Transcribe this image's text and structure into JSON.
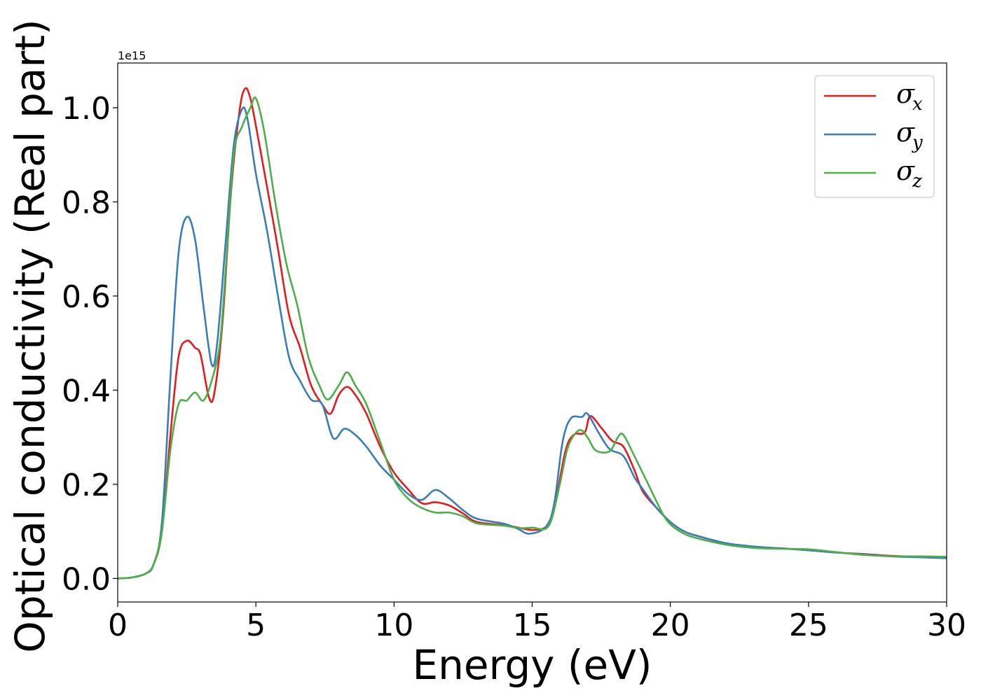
{
  "chart_data": {
    "type": "line",
    "xlabel": "Energy (eV)",
    "ylabel": "Optical conductivity (Real part)",
    "y_offset_text": "1e15",
    "xlim": [
      0,
      30
    ],
    "ylim": [
      -0.05,
      1.095
    ],
    "xticks": [
      0,
      5,
      10,
      15,
      20,
      25,
      30
    ],
    "xtick_labels": [
      "0",
      "5",
      "10",
      "15",
      "20",
      "25",
      "30"
    ],
    "yticks": [
      0.0,
      0.2,
      0.4,
      0.6,
      0.8,
      1.0
    ],
    "ytick_labels": [
      "0.0",
      "0.2",
      "0.4",
      "0.6",
      "0.8",
      "1.0"
    ],
    "grid": false,
    "legend_position": "top-right",
    "series": [
      {
        "name": "σx",
        "legend_symbol": "σ",
        "legend_sub": "x",
        "color": "#e41a1c",
        "points": [
          [
            0,
            0.0
          ],
          [
            0.5,
            0.002
          ],
          [
            1.0,
            0.01
          ],
          [
            1.3,
            0.03
          ],
          [
            1.6,
            0.1
          ],
          [
            1.9,
            0.3
          ],
          [
            2.2,
            0.47
          ],
          [
            2.5,
            0.505
          ],
          [
            2.8,
            0.49
          ],
          [
            3.0,
            0.475
          ],
          [
            3.3,
            0.385
          ],
          [
            3.5,
            0.395
          ],
          [
            3.8,
            0.55
          ],
          [
            4.1,
            0.82
          ],
          [
            4.4,
            0.99
          ],
          [
            4.6,
            1.04
          ],
          [
            4.8,
            1.02
          ],
          [
            5.1,
            0.93
          ],
          [
            5.5,
            0.8
          ],
          [
            5.8,
            0.7
          ],
          [
            6.2,
            0.56
          ],
          [
            6.6,
            0.49
          ],
          [
            7.0,
            0.41
          ],
          [
            7.4,
            0.37
          ],
          [
            7.7,
            0.35
          ],
          [
            8.0,
            0.39
          ],
          [
            8.3,
            0.407
          ],
          [
            8.6,
            0.39
          ],
          [
            9.0,
            0.35
          ],
          [
            9.5,
            0.28
          ],
          [
            10.0,
            0.225
          ],
          [
            10.5,
            0.19
          ],
          [
            11.0,
            0.16
          ],
          [
            11.5,
            0.162
          ],
          [
            12.0,
            0.155
          ],
          [
            12.5,
            0.138
          ],
          [
            13.0,
            0.12
          ],
          [
            14.0,
            0.113
          ],
          [
            14.5,
            0.108
          ],
          [
            15.0,
            0.103
          ],
          [
            15.5,
            0.11
          ],
          [
            15.8,
            0.15
          ],
          [
            16.2,
            0.27
          ],
          [
            16.5,
            0.305
          ],
          [
            16.9,
            0.31
          ],
          [
            17.1,
            0.345
          ],
          [
            17.5,
            0.32
          ],
          [
            17.9,
            0.292
          ],
          [
            18.3,
            0.28
          ],
          [
            18.7,
            0.23
          ],
          [
            19.0,
            0.185
          ],
          [
            19.5,
            0.15
          ],
          [
            20.0,
            0.12
          ],
          [
            20.5,
            0.1
          ],
          [
            21.0,
            0.09
          ],
          [
            22.0,
            0.075
          ],
          [
            23.0,
            0.067
          ],
          [
            24.0,
            0.064
          ],
          [
            25.0,
            0.06
          ],
          [
            26.0,
            0.055
          ],
          [
            27.0,
            0.052
          ],
          [
            28.0,
            0.048
          ],
          [
            29.0,
            0.046
          ],
          [
            30.0,
            0.045
          ]
        ]
      },
      {
        "name": "σy",
        "legend_symbol": "σ",
        "legend_sub": "y",
        "color": "#377eb8",
        "points": [
          [
            0,
            0.0
          ],
          [
            0.5,
            0.002
          ],
          [
            1.0,
            0.01
          ],
          [
            1.3,
            0.03
          ],
          [
            1.6,
            0.12
          ],
          [
            1.9,
            0.42
          ],
          [
            2.2,
            0.69
          ],
          [
            2.5,
            0.768
          ],
          [
            2.8,
            0.72
          ],
          [
            3.1,
            0.58
          ],
          [
            3.4,
            0.455
          ],
          [
            3.6,
            0.5
          ],
          [
            3.9,
            0.71
          ],
          [
            4.2,
            0.92
          ],
          [
            4.5,
            0.997
          ],
          [
            4.7,
            0.975
          ],
          [
            5.0,
            0.86
          ],
          [
            5.4,
            0.74
          ],
          [
            5.8,
            0.6
          ],
          [
            6.2,
            0.47
          ],
          [
            6.6,
            0.42
          ],
          [
            7.0,
            0.38
          ],
          [
            7.4,
            0.37
          ],
          [
            7.8,
            0.298
          ],
          [
            8.2,
            0.318
          ],
          [
            8.6,
            0.305
          ],
          [
            9.0,
            0.28
          ],
          [
            9.5,
            0.24
          ],
          [
            10.0,
            0.21
          ],
          [
            10.5,
            0.18
          ],
          [
            11.0,
            0.167
          ],
          [
            11.5,
            0.188
          ],
          [
            12.0,
            0.17
          ],
          [
            12.5,
            0.145
          ],
          [
            13.0,
            0.127
          ],
          [
            14.0,
            0.116
          ],
          [
            14.5,
            0.105
          ],
          [
            14.9,
            0.095
          ],
          [
            15.5,
            0.11
          ],
          [
            15.8,
            0.16
          ],
          [
            16.1,
            0.29
          ],
          [
            16.4,
            0.34
          ],
          [
            16.8,
            0.343
          ],
          [
            17.0,
            0.35
          ],
          [
            17.4,
            0.31
          ],
          [
            17.8,
            0.275
          ],
          [
            18.3,
            0.26
          ],
          [
            18.7,
            0.215
          ],
          [
            19.0,
            0.19
          ],
          [
            19.5,
            0.15
          ],
          [
            20.0,
            0.12
          ],
          [
            20.5,
            0.1
          ],
          [
            21.0,
            0.09
          ],
          [
            22.0,
            0.075
          ],
          [
            23.0,
            0.068
          ],
          [
            24.0,
            0.064
          ],
          [
            25.0,
            0.06
          ],
          [
            26.0,
            0.055
          ],
          [
            27.0,
            0.051
          ],
          [
            28.0,
            0.047
          ],
          [
            29.0,
            0.045
          ],
          [
            30.0,
            0.043
          ]
        ]
      },
      {
        "name": "σz",
        "legend_symbol": "σ",
        "legend_sub": "z",
        "color": "#4daf4a",
        "points": [
          [
            0,
            0.0
          ],
          [
            0.5,
            0.002
          ],
          [
            1.0,
            0.01
          ],
          [
            1.3,
            0.03
          ],
          [
            1.6,
            0.1
          ],
          [
            1.9,
            0.27
          ],
          [
            2.2,
            0.37
          ],
          [
            2.5,
            0.378
          ],
          [
            2.8,
            0.395
          ],
          [
            3.1,
            0.378
          ],
          [
            3.4,
            0.42
          ],
          [
            3.7,
            0.5
          ],
          [
            3.9,
            0.65
          ],
          [
            4.2,
            0.9
          ],
          [
            4.5,
            0.96
          ],
          [
            4.8,
            1.0
          ],
          [
            5.0,
            1.02
          ],
          [
            5.3,
            0.95
          ],
          [
            5.7,
            0.8
          ],
          [
            6.1,
            0.67
          ],
          [
            6.5,
            0.58
          ],
          [
            6.9,
            0.47
          ],
          [
            7.3,
            0.41
          ],
          [
            7.6,
            0.38
          ],
          [
            8.0,
            0.41
          ],
          [
            8.3,
            0.438
          ],
          [
            8.6,
            0.41
          ],
          [
            9.0,
            0.37
          ],
          [
            9.5,
            0.29
          ],
          [
            10.0,
            0.21
          ],
          [
            10.5,
            0.17
          ],
          [
            11.0,
            0.15
          ],
          [
            11.5,
            0.14
          ],
          [
            12.0,
            0.14
          ],
          [
            12.5,
            0.132
          ],
          [
            13.0,
            0.117
          ],
          [
            14.0,
            0.112
          ],
          [
            14.5,
            0.107
          ],
          [
            15.0,
            0.108
          ],
          [
            15.6,
            0.112
          ],
          [
            16.0,
            0.2
          ],
          [
            16.3,
            0.28
          ],
          [
            16.7,
            0.315
          ],
          [
            17.0,
            0.3
          ],
          [
            17.3,
            0.272
          ],
          [
            17.8,
            0.27
          ],
          [
            18.1,
            0.3
          ],
          [
            18.3,
            0.305
          ],
          [
            18.7,
            0.26
          ],
          [
            19.2,
            0.2
          ],
          [
            19.7,
            0.14
          ],
          [
            20.0,
            0.115
          ],
          [
            20.5,
            0.095
          ],
          [
            21.0,
            0.085
          ],
          [
            22.0,
            0.072
          ],
          [
            23.0,
            0.065
          ],
          [
            24.0,
            0.063
          ],
          [
            25.0,
            0.062
          ],
          [
            26.0,
            0.056
          ],
          [
            27.0,
            0.05
          ],
          [
            28.0,
            0.047
          ],
          [
            29.0,
            0.047
          ],
          [
            30.0,
            0.046
          ]
        ]
      }
    ]
  }
}
